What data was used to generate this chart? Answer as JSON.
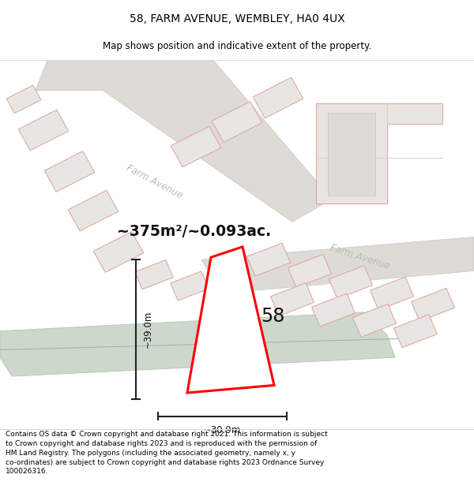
{
  "title": "58, FARM AVENUE, WEMBLEY, HA0 4UX",
  "subtitle": "Map shows position and indicative extent of the property.",
  "footer": "Contains OS data © Crown copyright and database right 2021. This information is subject to Crown copyright and database rights 2023 and is reproduced with the permission of HM Land Registry. The polygons (including the associated geometry, namely x, y co-ordinates) are subject to Crown copyright and database rights 2023 Ordnance Survey 100026316.",
  "area_label": "~375m²/~0.093ac.",
  "number_label": "58",
  "dim_width": "~30.9m",
  "dim_height": "~39.0m",
  "map_bg": "#f2f0ed",
  "road_fill": "#dedad5",
  "bldg_fill": "#e8e6e2",
  "bldg_edge": "#e0a0a0",
  "highlight_color": "#ff0000",
  "green_fill": "#cdd8cd",
  "green_edge": "#b8c8b8",
  "farm_avenue_label1": "Farm Avenue",
  "farm_avenue_label2": "Farm Avenue",
  "title_fontsize": 10,
  "subtitle_fontsize": 8.5,
  "footer_fontsize": 6.5
}
